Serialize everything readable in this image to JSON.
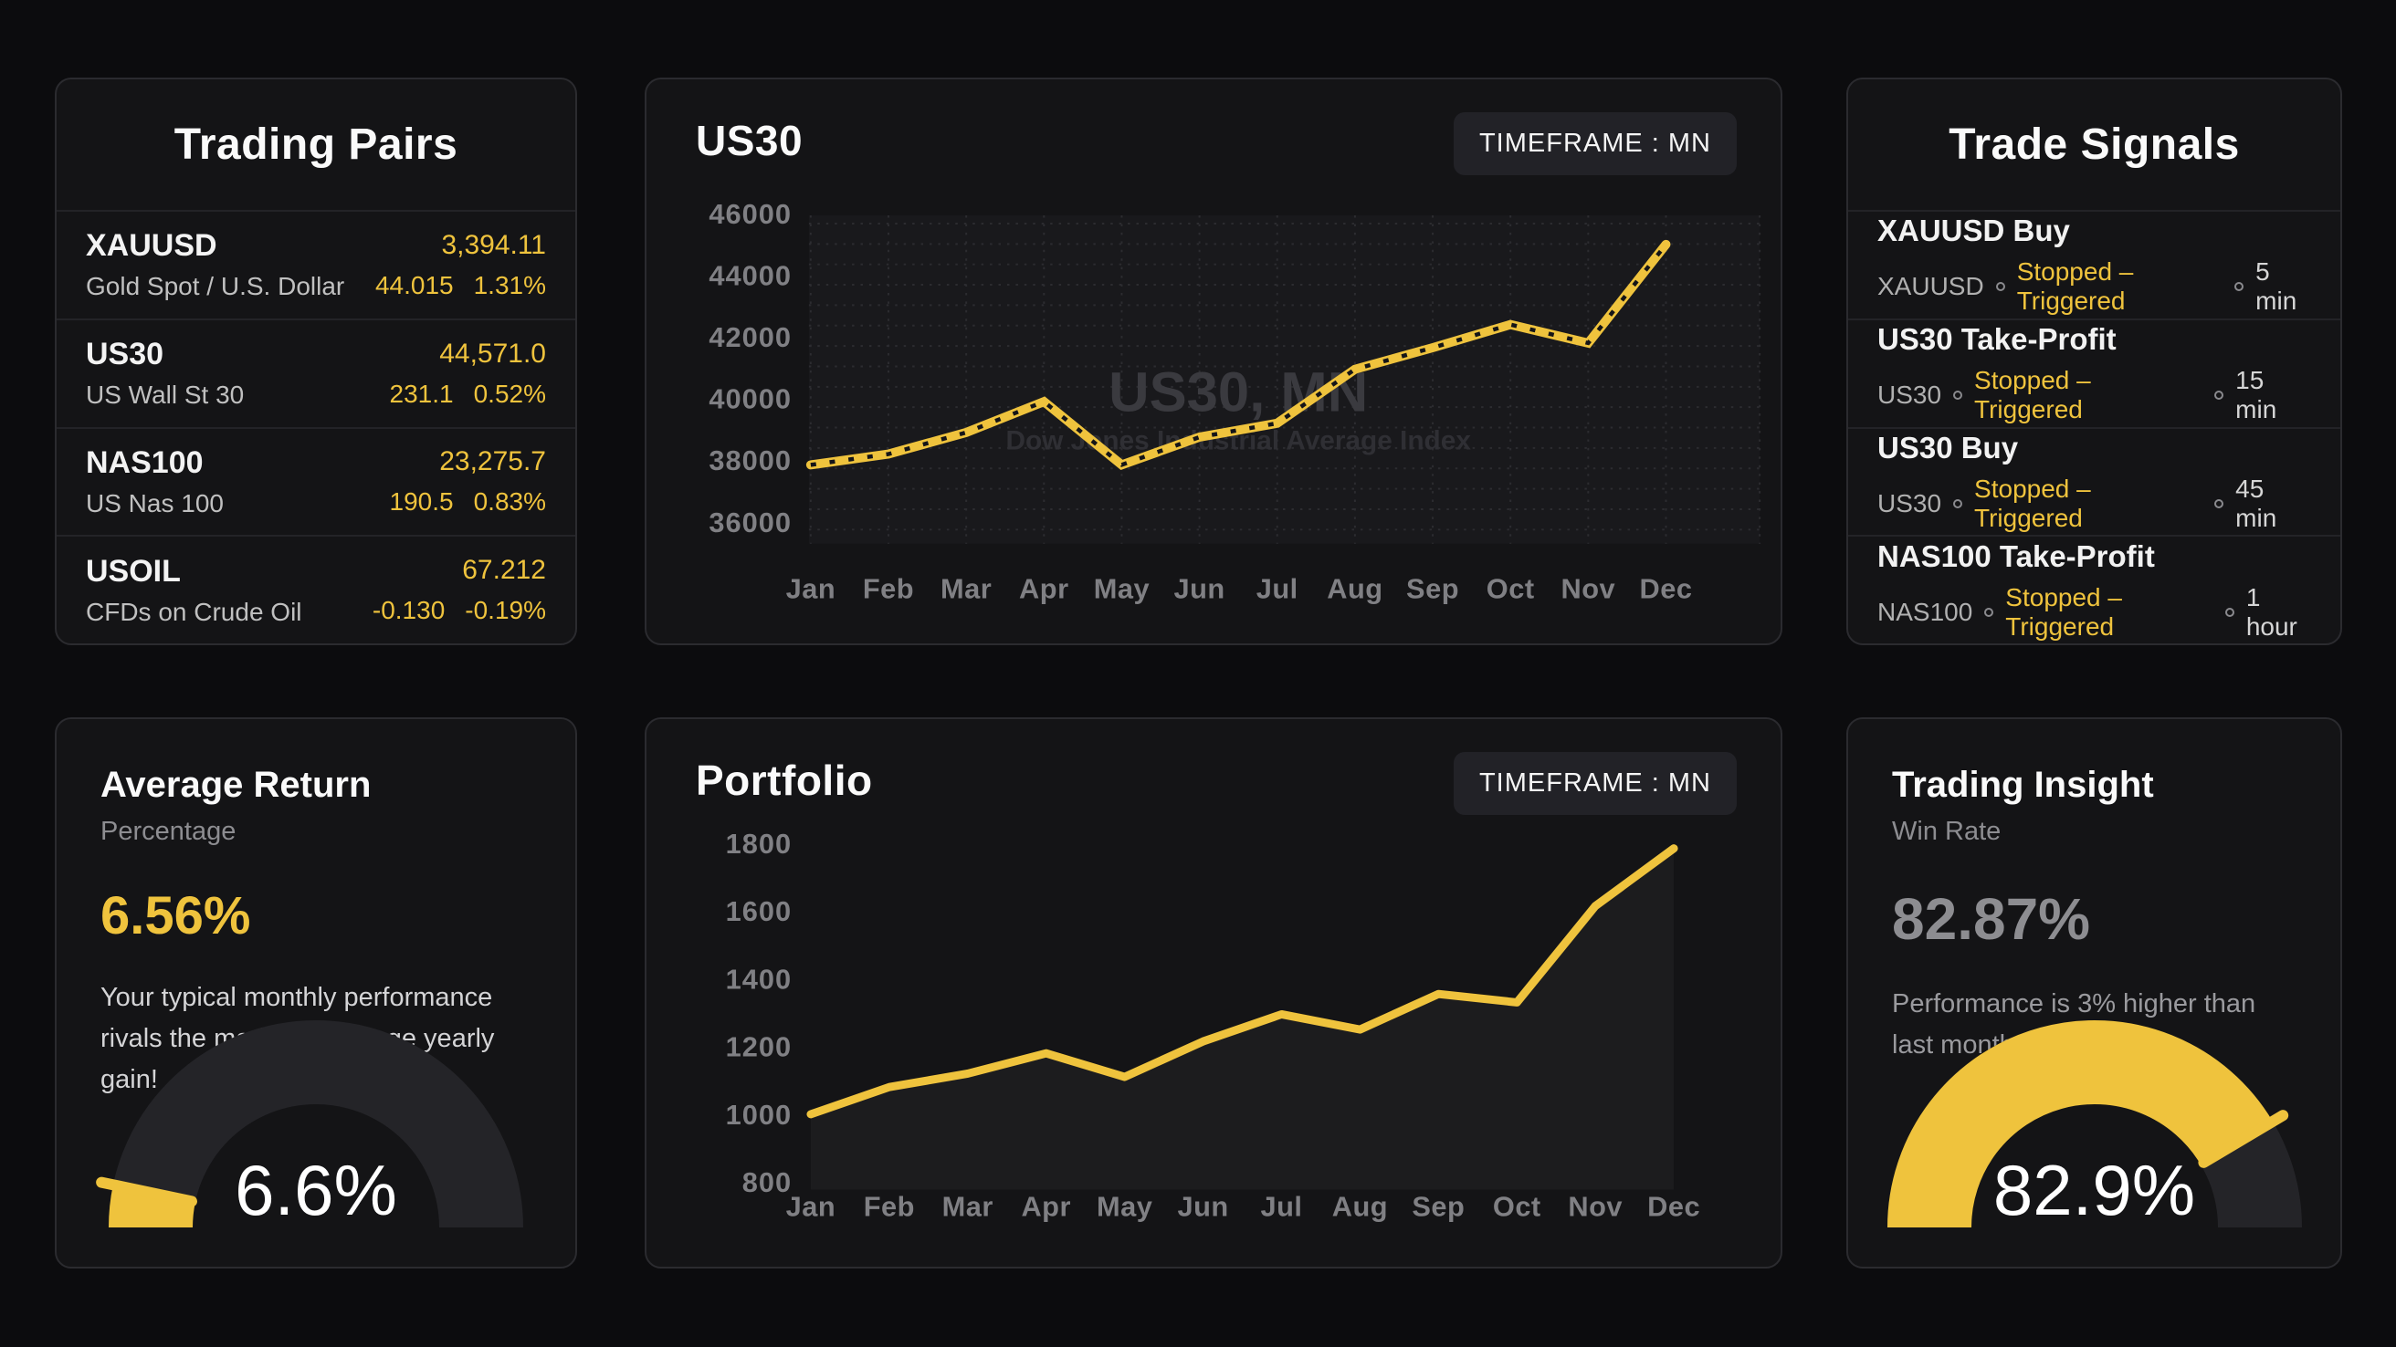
{
  "colors": {
    "accent": "#EFC33D",
    "page_bg": "#0C0C0E",
    "card_bg": "#141416",
    "card_border": "#2B2B2F",
    "separator": "#232327",
    "axis_text": "#808084",
    "gauge_track": "#242428",
    "watermark_title": "#3A3A3F",
    "watermark_subtitle": "#2F2F34",
    "plot_bg": "#19191C"
  },
  "cards": {
    "trading_pairs": {
      "title": "Trading Pairs",
      "pairs": [
        {
          "symbol": "XAUUSD",
          "name": "Gold Spot / U.S. Dollar",
          "price": "3,394.11",
          "change": "44.015",
          "change_pct": "1.31%"
        },
        {
          "symbol": "US30",
          "name": "US Wall St 30",
          "price": "44,571.0",
          "change": "231.1",
          "change_pct": "0.52%"
        },
        {
          "symbol": "NAS100",
          "name": "US Nas 100",
          "price": "23,275.7",
          "change": "190.5",
          "change_pct": "0.83%"
        },
        {
          "symbol": "USOIL",
          "name": "CFDs on Crude Oil",
          "price": "67.212",
          "change": "-0.130",
          "change_pct": "-0.19%"
        }
      ]
    },
    "us30_chart": {
      "title": "US30",
      "timeframe_label": "TIMEFRAME : MN",
      "watermark_title": "US30, MN",
      "watermark_subtitle": "Dow Jones Industrial Average Index"
    },
    "trade_signals": {
      "title": "Trade Signals",
      "signals": [
        {
          "title": "XAUUSD Buy",
          "symbol": "XAUUSD",
          "status": "Stopped – Triggered",
          "time": "5 min"
        },
        {
          "title": "US30 Take-Profit",
          "symbol": "US30",
          "status": "Stopped – Triggered",
          "time": "15 min"
        },
        {
          "title": "US30 Buy",
          "symbol": "US30",
          "status": "Stopped – Triggered",
          "time": "45 min"
        },
        {
          "title": "NAS100 Take-Profit",
          "symbol": "NAS100",
          "status": "Stopped – Triggered",
          "time": "1 hour"
        }
      ]
    },
    "average_return": {
      "title": "Average Return",
      "subtitle": "Percentage",
      "value": "6.56%",
      "description": "Your typical monthly performance rivals the market’s average yearly gain!",
      "gauge_value": 6.6,
      "gauge_label": "6.6%"
    },
    "portfolio_chart": {
      "title": "Portfolio",
      "timeframe_label": "TIMEFRAME : MN"
    },
    "trading_insight": {
      "title": "Trading Insight",
      "subtitle": "Win Rate",
      "value": "82.87%",
      "description": "Performance is 3% higher than last month.",
      "gauge_value": 82.9,
      "gauge_label": "82.9%"
    }
  },
  "chart_data": [
    {
      "type": "line",
      "title": "US30",
      "timeframe": "MN",
      "categories": [
        "Jan",
        "Feb",
        "Mar",
        "Apr",
        "May",
        "Jun",
        "Jul",
        "Aug",
        "Sep",
        "Oct",
        "Nov",
        "Dec"
      ],
      "values": [
        37850,
        38200,
        38900,
        39900,
        37850,
        38750,
        39200,
        40950,
        41650,
        42400,
        41800,
        45000
      ],
      "xlabel": "",
      "ylabel": "",
      "ylim": [
        36000,
        46000
      ],
      "yticks": [
        46000,
        44000,
        42000,
        40000,
        38000,
        36000
      ],
      "grid": "dotted",
      "legend": "none",
      "annotations": [
        "US30, MN",
        "Dow Jones Industrial Average Index"
      ]
    },
    {
      "type": "line",
      "title": "Portfolio",
      "timeframe": "MN",
      "categories": [
        "Jan",
        "Feb",
        "Mar",
        "Apr",
        "May",
        "Jun",
        "Jul",
        "Aug",
        "Sep",
        "Oct",
        "Nov",
        "Dec"
      ],
      "values": [
        1000,
        1080,
        1120,
        1180,
        1110,
        1215,
        1295,
        1250,
        1355,
        1330,
        1615,
        1785
      ],
      "xlabel": "",
      "ylabel": "",
      "ylim": [
        800,
        1800
      ],
      "yticks": [
        1800,
        1600,
        1400,
        1200,
        1000,
        800
      ],
      "grid": "off",
      "legend": "none",
      "area_fill": true
    }
  ]
}
